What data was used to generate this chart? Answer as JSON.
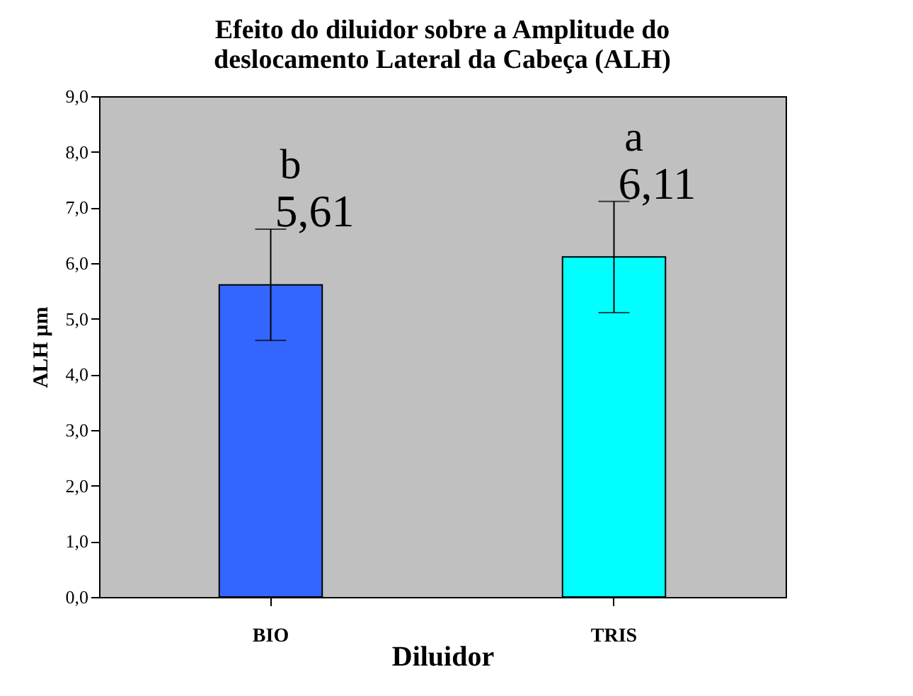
{
  "chart_data": {
    "type": "bar",
    "title": [
      "Efeito do diluidor sobre a Amplitude do",
      "deslocamento Lateral da Cabeça  (ALH)"
    ],
    "xlabel": "Diluidor",
    "ylabel": "ALH µm",
    "categories": [
      "BIO",
      "TRIS"
    ],
    "values": [
      5.61,
      6.11
    ],
    "colors": [
      "#3366ff",
      "#00ffff"
    ],
    "errors": [
      1.0,
      1.0
    ],
    "value_labels": [
      "5,61",
      "6,11"
    ],
    "annotations": [
      "b",
      "a"
    ],
    "ylim": [
      0,
      9
    ],
    "yticks": [
      {
        "value": 0,
        "label": "0,0"
      },
      {
        "value": 1,
        "label": "1,0"
      },
      {
        "value": 2,
        "label": "2,0"
      },
      {
        "value": 3,
        "label": "3,0"
      },
      {
        "value": 4,
        "label": "4,0"
      },
      {
        "value": 5,
        "label": "5,0"
      },
      {
        "value": 6,
        "label": "6,0"
      },
      {
        "value": 7,
        "label": "7,0"
      },
      {
        "value": 8,
        "label": "8,0"
      },
      {
        "value": 9,
        "label": "9,0"
      }
    ],
    "grid": false
  }
}
